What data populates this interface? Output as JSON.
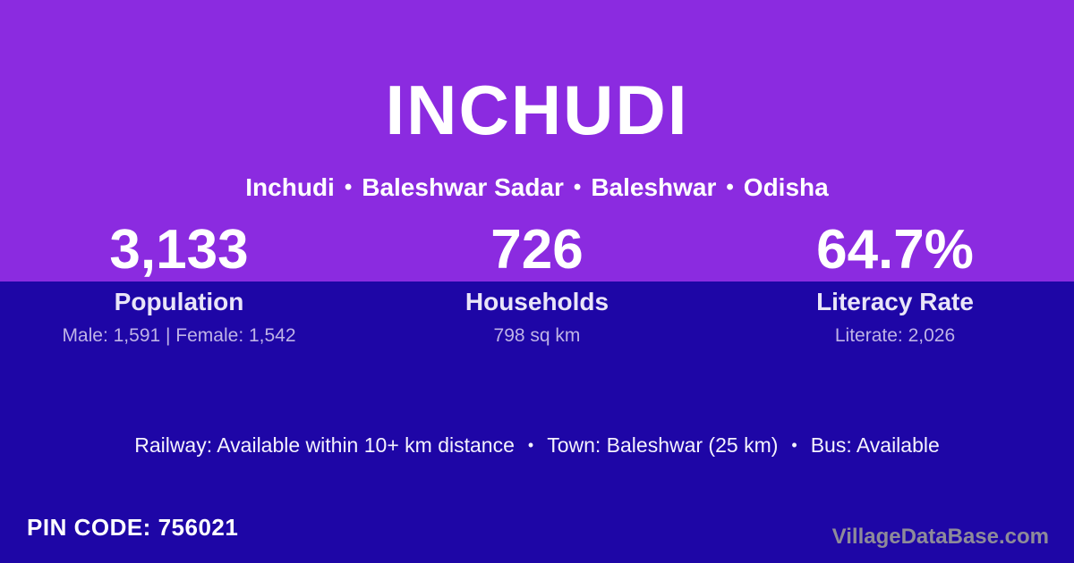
{
  "theme": {
    "purple": "#8b2be0",
    "indigo": "#1e06a6",
    "text_white": "#ffffff",
    "text_lavender": "#beb3e6",
    "label_color": "#e9e5f8",
    "watermark_gray": "#8e8b99"
  },
  "header": {
    "title": "INCHUDI",
    "separator": "•",
    "breadcrumb_parts": [
      "Inchudi",
      "Baleshwar Sadar",
      "Baleshwar",
      "Odisha"
    ]
  },
  "stats": [
    {
      "value": "3,133",
      "label": "Population",
      "detail": "Male: 1,591 | Female: 1,542"
    },
    {
      "value": "726",
      "label": "Households",
      "detail": "798 sq km"
    },
    {
      "value": "64.7%",
      "label": "Literacy Rate",
      "detail": "Literate: 2,026"
    }
  ],
  "transport": {
    "separator": "•",
    "items": [
      "Railway: Available within 10+ km distance",
      "Town: Baleshwar (25 km)",
      "Bus: Available"
    ]
  },
  "footer": {
    "pin_code": "PIN CODE: 756021",
    "watermark": "VillageDataBase.com"
  }
}
